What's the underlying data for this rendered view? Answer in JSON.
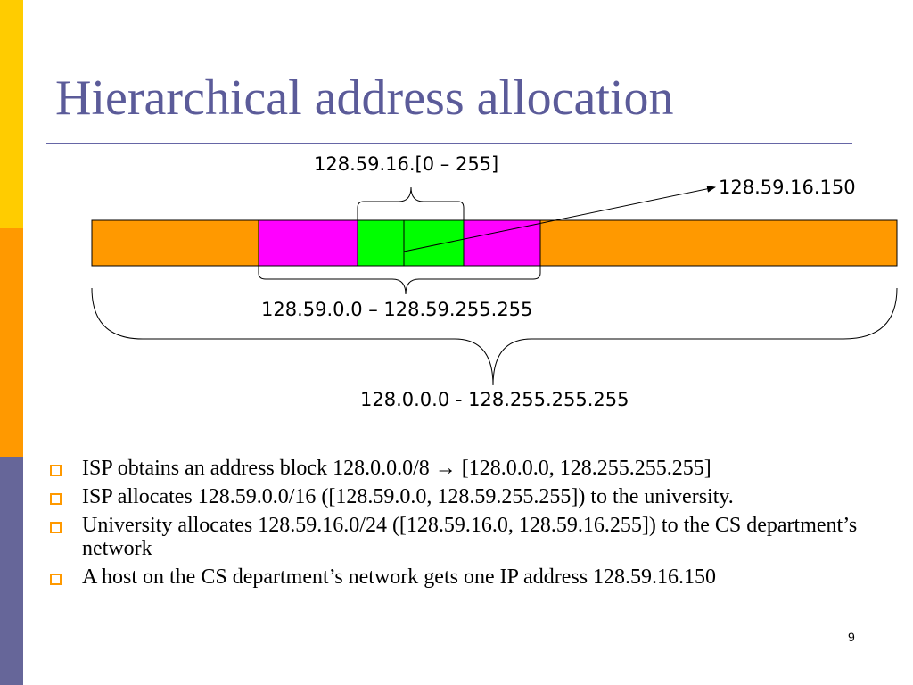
{
  "slide": {
    "title": "Hierarchical address allocation",
    "page_number": "9"
  },
  "diagram": {
    "label_subnet24": "128.59.16.[0 – 255]",
    "label_host": "128.59.16.150",
    "label_subnet16": "128.59.0.0 – 128.59.255.255",
    "label_block8": "128.0.0.0 - 128.255.255.255",
    "colors": {
      "isp_block": "#FF9900",
      "university_block": "#FF00FF",
      "cs_block": "#00FF00"
    }
  },
  "bullets": [
    {
      "text": "ISP obtains an address block 128.0.0.0/8 → [128.0.0.0, 128.255.255.255]"
    },
    {
      "text": "ISP allocates 128.59.0.0/16 ([128.59.0.0, 128.59.255.255]) to the university."
    },
    {
      "text": "University allocates 128.59.16.0/24 ([128.59.16.0, 128.59.16.255]) to the CS department’s network"
    },
    {
      "text": "A host on the CS department’s network gets one IP address 128.59.16.150"
    }
  ]
}
